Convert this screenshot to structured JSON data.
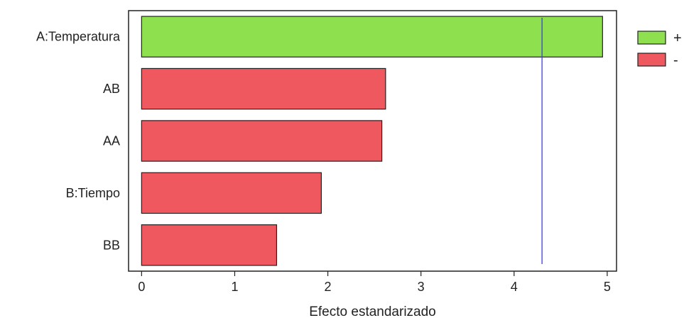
{
  "chart_data": {
    "type": "bar",
    "orientation": "horizontal",
    "title": "",
    "xlabel": "Efecto estandarizado",
    "ylabel": "",
    "xlim": [
      -0.14,
      5.1
    ],
    "xticks": [
      0,
      1,
      2,
      3,
      4,
      5
    ],
    "categories": [
      "A:Temperatura",
      "AB",
      "AA",
      "B:Tiempo",
      "BB"
    ],
    "values": [
      4.95,
      2.62,
      2.58,
      1.93,
      1.45
    ],
    "signs": [
      "+",
      "-",
      "-",
      "-",
      "-"
    ],
    "reference_line": 4.3,
    "grid": false,
    "legend": {
      "position": "right",
      "entries": [
        {
          "label": "+",
          "color": "#8fe04e"
        },
        {
          "label": "-",
          "color": "#f0585f"
        }
      ]
    },
    "colors": {
      "positive": "#8fe04e",
      "negative": "#f0585f",
      "reference_line": "#3a3af0"
    }
  }
}
